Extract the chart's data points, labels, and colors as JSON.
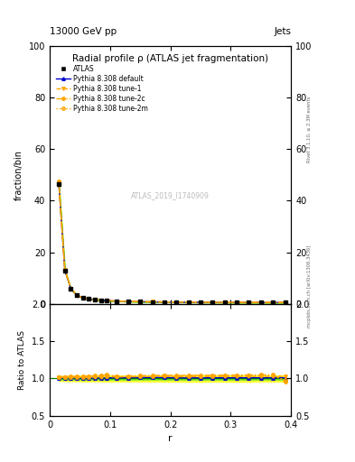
{
  "title": "Radial profile ρ (ATLAS jet fragmentation)",
  "header_left": "13000 GeV pp",
  "header_right": "Jets",
  "ylabel_main": "fraction/bin",
  "ylabel_ratio": "Ratio to ATLAS",
  "xlabel": "r",
  "watermark": "ATLAS_2019_I1740909",
  "rivet_label": "Rivet 3.1.10, ≥ 2.3M events",
  "mcplots_label": "mcplots.cern.ch [arXiv:1306.3436]",
  "r_values": [
    0.015,
    0.025,
    0.035,
    0.045,
    0.055,
    0.065,
    0.075,
    0.085,
    0.095,
    0.11,
    0.13,
    0.15,
    0.17,
    0.19,
    0.21,
    0.23,
    0.25,
    0.27,
    0.29,
    0.31,
    0.33,
    0.35,
    0.37,
    0.39
  ],
  "atlas_y": [
    46.5,
    13.0,
    5.8,
    3.3,
    2.3,
    1.9,
    1.6,
    1.4,
    1.2,
    1.05,
    0.92,
    0.82,
    0.75,
    0.7,
    0.65,
    0.62,
    0.6,
    0.58,
    0.56,
    0.55,
    0.53,
    0.52,
    0.51,
    0.5
  ],
  "atlas_yerr": [
    0.5,
    0.15,
    0.07,
    0.04,
    0.03,
    0.025,
    0.02,
    0.018,
    0.016,
    0.014,
    0.012,
    0.011,
    0.01,
    0.01,
    0.009,
    0.009,
    0.009,
    0.008,
    0.008,
    0.008,
    0.008,
    0.007,
    0.007,
    0.007
  ],
  "pythia_default_y": [
    46.8,
    13.1,
    5.85,
    3.32,
    2.31,
    1.91,
    1.61,
    1.41,
    1.21,
    1.06,
    0.93,
    0.83,
    0.76,
    0.71,
    0.655,
    0.625,
    0.605,
    0.585,
    0.565,
    0.555,
    0.535,
    0.525,
    0.515,
    0.505
  ],
  "pythia_tune1_y": [
    47.2,
    13.2,
    5.9,
    3.35,
    2.34,
    1.93,
    1.63,
    1.43,
    1.23,
    1.07,
    0.94,
    0.84,
    0.77,
    0.72,
    0.665,
    0.635,
    0.615,
    0.595,
    0.575,
    0.565,
    0.545,
    0.535,
    0.525,
    0.515
  ],
  "pythia_tune2c_y": [
    47.5,
    13.3,
    5.95,
    3.38,
    2.37,
    1.96,
    1.66,
    1.46,
    1.26,
    1.08,
    0.95,
    0.85,
    0.78,
    0.73,
    0.675,
    0.645,
    0.625,
    0.605,
    0.585,
    0.575,
    0.555,
    0.545,
    0.535,
    0.48
  ],
  "pythia_tune2m_y": [
    47.4,
    13.25,
    5.92,
    3.36,
    2.35,
    1.94,
    1.64,
    1.44,
    1.24,
    1.075,
    0.945,
    0.845,
    0.775,
    0.725,
    0.67,
    0.64,
    0.62,
    0.6,
    0.58,
    0.57,
    0.55,
    0.54,
    0.53,
    0.49
  ],
  "color_atlas": "#000000",
  "color_default": "#0000cc",
  "color_tune1": "#ffa500",
  "color_tune2c": "#ffa500",
  "color_tune2m": "#ffa500",
  "atlas_band_color": "#00cc00",
  "yellow_band_color": "#ffff00",
  "ylim_main": [
    0,
    100
  ],
  "ylim_ratio": [
    0.5,
    2.0
  ],
  "xlim": [
    0.0,
    0.4
  ]
}
